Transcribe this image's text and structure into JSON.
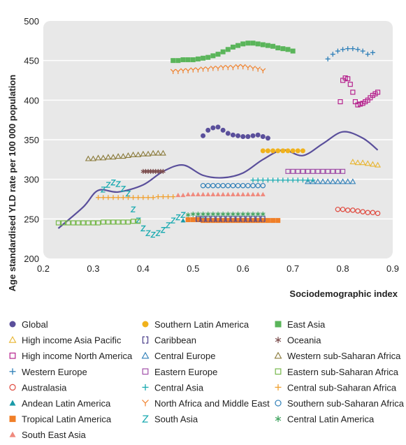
{
  "chart_data": {
    "type": "scatter",
    "xlabel": "Sociodemographic index",
    "ylabel": "Age standardised YLD rate per 100 000 population",
    "xlim": [
      0.2,
      0.9
    ],
    "ylim": [
      200,
      500
    ],
    "xticks": [
      "0.2",
      "0.3",
      "0.4",
      "0.5",
      "0.6",
      "0.7",
      "0.8",
      "0.9"
    ],
    "yticks": [
      "200",
      "250",
      "300",
      "350",
      "400",
      "450",
      "500"
    ],
    "grid": "horizontal",
    "legend_position": "bottom",
    "series": [
      {
        "name": "Global",
        "marker": "circle-filled",
        "color": "#5a4f9b",
        "x": [
          0.52,
          0.53,
          0.54,
          0.55,
          0.56,
          0.57,
          0.58,
          0.59,
          0.6,
          0.61,
          0.62,
          0.63,
          0.64,
          0.65
        ],
        "y": [
          355,
          362,
          365,
          366,
          362,
          358,
          356,
          355,
          354,
          354,
          355,
          356,
          354,
          352
        ]
      },
      {
        "name": "High income Asia Pacific",
        "marker": "triangle-open",
        "color": "#e8b530",
        "x": [
          0.82,
          0.83,
          0.84,
          0.85,
          0.86,
          0.87
        ],
        "y": [
          322,
          321,
          321,
          320,
          319,
          318
        ]
      },
      {
        "name": "High income North America",
        "marker": "square-open",
        "color": "#b6238e",
        "x": [
          0.795,
          0.8,
          0.805,
          0.81,
          0.815,
          0.82,
          0.825,
          0.83,
          0.835,
          0.84,
          0.845,
          0.85,
          0.855,
          0.86,
          0.865,
          0.87
        ],
        "y": [
          398,
          425,
          428,
          427,
          420,
          410,
          398,
          394,
          395,
          396,
          398,
          400,
          403,
          406,
          408,
          410
        ]
      },
      {
        "name": "Western Europe",
        "marker": "plus",
        "color": "#2e7fb8",
        "x": [
          0.77,
          0.78,
          0.79,
          0.8,
          0.81,
          0.82,
          0.83,
          0.84,
          0.85,
          0.86
        ],
        "y": [
          452,
          458,
          462,
          464,
          465,
          465,
          464,
          462,
          458,
          460
        ]
      },
      {
        "name": "Australasia",
        "marker": "circle-open",
        "color": "#e04a3f",
        "x": [
          0.79,
          0.8,
          0.81,
          0.82,
          0.83,
          0.84,
          0.85,
          0.86,
          0.87
        ],
        "y": [
          262,
          262,
          261,
          261,
          260,
          259,
          258,
          258,
          257
        ]
      },
      {
        "name": "Andean Latin America",
        "marker": "triangle-filled",
        "color": "#1a9aa8",
        "x": [
          0.48,
          0.49,
          0.5,
          0.51,
          0.52,
          0.53
        ],
        "y": [
          248,
          249,
          250,
          250,
          250,
          249
        ]
      },
      {
        "name": "Tropical Latin America",
        "marker": "square-filled",
        "color": "#f07f28",
        "x": [
          0.49,
          0.5,
          0.51,
          0.52,
          0.53,
          0.54,
          0.55,
          0.56,
          0.57,
          0.58,
          0.59,
          0.6,
          0.61,
          0.62,
          0.63,
          0.64,
          0.65,
          0.66,
          0.67
        ],
        "y": [
          249,
          249,
          249,
          248,
          248,
          248,
          248,
          248,
          248,
          248,
          248,
          248,
          248,
          248,
          248,
          248,
          248,
          248,
          248
        ]
      },
      {
        "name": "Central Latin America",
        "marker": "asterisk",
        "color": "#3aa15a",
        "x": [
          0.49,
          0.5,
          0.51,
          0.52,
          0.53,
          0.54,
          0.55,
          0.56,
          0.57,
          0.58,
          0.59,
          0.6,
          0.61,
          0.62,
          0.63,
          0.64
        ],
        "y": [
          255,
          256,
          256,
          256,
          256,
          256,
          256,
          256,
          256,
          256,
          256,
          256,
          256,
          256,
          256,
          256
        ]
      },
      {
        "name": "Southern Latin America",
        "marker": "circle-filled",
        "color": "#f0b21c",
        "x": [
          0.64,
          0.65,
          0.66,
          0.67,
          0.68,
          0.69,
          0.7,
          0.71,
          0.72
        ],
        "y": [
          336,
          336,
          336,
          336,
          336,
          336,
          336,
          336,
          336
        ]
      },
      {
        "name": "Caribbean",
        "marker": "bracket",
        "color": "#4b3f8a",
        "x": [
          0.51,
          0.52,
          0.53,
          0.54,
          0.55,
          0.56,
          0.57,
          0.58,
          0.59,
          0.6,
          0.61,
          0.62,
          0.63,
          0.64
        ],
        "y": [
          250,
          250,
          250,
          250,
          250,
          250,
          250,
          250,
          250,
          250,
          250,
          250,
          250,
          250
        ]
      },
      {
        "name": "Central Europe",
        "marker": "triangle-open",
        "color": "#2e7fb8",
        "x": [
          0.73,
          0.74,
          0.75,
          0.76,
          0.77,
          0.78,
          0.79,
          0.8,
          0.81,
          0.82
        ],
        "y": [
          297,
          297,
          297,
          297,
          297,
          297,
          297,
          297,
          297,
          297
        ]
      },
      {
        "name": "Eastern Europe",
        "marker": "square-open",
        "color": "#a14fa8",
        "x": [
          0.69,
          0.7,
          0.71,
          0.72,
          0.73,
          0.74,
          0.75,
          0.76,
          0.77,
          0.78,
          0.79,
          0.8
        ],
        "y": [
          310,
          310,
          310,
          310,
          310,
          310,
          310,
          310,
          310,
          310,
          310,
          310
        ]
      },
      {
        "name": "Central Asia",
        "marker": "plus",
        "color": "#1aaab0",
        "x": [
          0.62,
          0.63,
          0.64,
          0.65,
          0.66,
          0.67,
          0.68,
          0.69,
          0.7,
          0.71,
          0.72,
          0.73,
          0.74
        ],
        "y": [
          299,
          299,
          299,
          299,
          299,
          299,
          299,
          299,
          299,
          299,
          299,
          299,
          299
        ]
      },
      {
        "name": "North Africa and Middle East",
        "marker": "y-mark",
        "color": "#f07f28",
        "x": [
          0.46,
          0.47,
          0.48,
          0.49,
          0.5,
          0.51,
          0.52,
          0.53,
          0.54,
          0.55,
          0.56,
          0.57,
          0.58,
          0.59,
          0.6,
          0.61,
          0.62,
          0.63,
          0.64
        ],
        "y": [
          436,
          436,
          437,
          437,
          438,
          438,
          439,
          439,
          440,
          440,
          441,
          441,
          441,
          442,
          442,
          441,
          440,
          439,
          437
        ]
      },
      {
        "name": "South Asia",
        "marker": "z-mark",
        "color": "#1aaab0",
        "x": [
          0.32,
          0.33,
          0.34,
          0.35,
          0.36,
          0.37,
          0.38,
          0.39,
          0.4,
          0.41,
          0.42,
          0.43,
          0.44,
          0.45,
          0.46,
          0.47,
          0.48
        ],
        "y": [
          287,
          293,
          296,
          294,
          288,
          282,
          262,
          248,
          238,
          232,
          230,
          232,
          236,
          242,
          248,
          252,
          255
        ]
      },
      {
        "name": "South East Asia",
        "marker": "triangle-filled",
        "color": "#f08a7e",
        "x": [
          0.47,
          0.48,
          0.49,
          0.5,
          0.51,
          0.52,
          0.53,
          0.54,
          0.55,
          0.56,
          0.57,
          0.58,
          0.59,
          0.6,
          0.61,
          0.62,
          0.63,
          0.64
        ],
        "y": [
          280,
          280,
          281,
          281,
          281,
          281,
          281,
          281,
          281,
          281,
          281,
          281,
          281,
          281,
          281,
          281,
          281,
          281
        ]
      },
      {
        "name": "East Asia",
        "marker": "square-filled",
        "color": "#5ab55a",
        "x": [
          0.46,
          0.47,
          0.48,
          0.49,
          0.5,
          0.51,
          0.52,
          0.53,
          0.54,
          0.55,
          0.56,
          0.57,
          0.58,
          0.59,
          0.6,
          0.61,
          0.62,
          0.63,
          0.64,
          0.65,
          0.66,
          0.67,
          0.68,
          0.69,
          0.7
        ],
        "y": [
          450,
          450,
          451,
          451,
          451,
          452,
          453,
          454,
          456,
          458,
          461,
          464,
          467,
          469,
          471,
          472,
          472,
          471,
          470,
          469,
          468,
          466,
          465,
          464,
          462
        ]
      },
      {
        "name": "Oceania",
        "marker": "asterisk",
        "color": "#7a4b4b",
        "x": [
          0.4,
          0.405,
          0.41,
          0.415,
          0.42,
          0.425,
          0.43,
          0.435,
          0.44
        ],
        "y": [
          310,
          310,
          310,
          310,
          310,
          310,
          310,
          310,
          310
        ]
      },
      {
        "name": "Western sub-Saharan Africa",
        "marker": "triangle-open",
        "color": "#8a7a3a",
        "x": [
          0.29,
          0.3,
          0.31,
          0.32,
          0.33,
          0.34,
          0.35,
          0.36,
          0.37,
          0.38,
          0.39,
          0.4,
          0.41,
          0.42,
          0.43,
          0.44
        ],
        "y": [
          326,
          326,
          327,
          327,
          328,
          328,
          329,
          329,
          330,
          331,
          331,
          332,
          332,
          333,
          333,
          333
        ]
      },
      {
        "name": "Eastern sub-Saharan Africa",
        "marker": "square-open",
        "color": "#76b84a",
        "x": [
          0.23,
          0.24,
          0.25,
          0.26,
          0.27,
          0.28,
          0.29,
          0.3,
          0.31,
          0.32,
          0.33,
          0.34,
          0.35,
          0.36,
          0.37,
          0.38,
          0.39
        ],
        "y": [
          245,
          245,
          245,
          245,
          245,
          245,
          245,
          245,
          245,
          246,
          246,
          246,
          246,
          246,
          246,
          247,
          247
        ]
      },
      {
        "name": "Central sub-Saharan Africa",
        "marker": "plus",
        "color": "#f0a030",
        "x": [
          0.31,
          0.32,
          0.33,
          0.34,
          0.35,
          0.36,
          0.37,
          0.38,
          0.39,
          0.4,
          0.41,
          0.42,
          0.43,
          0.44,
          0.45,
          0.46
        ],
        "y": [
          277,
          277,
          277,
          277,
          277,
          277,
          277,
          277,
          277,
          277,
          277,
          277,
          278,
          278,
          278,
          278
        ]
      },
      {
        "name": "Southern sub-Saharan Africa",
        "marker": "circle-open",
        "color": "#2e7fb8",
        "x": [
          0.52,
          0.53,
          0.54,
          0.55,
          0.56,
          0.57,
          0.58,
          0.59,
          0.6,
          0.61,
          0.62,
          0.63,
          0.64
        ],
        "y": [
          292,
          292,
          292,
          292,
          292,
          292,
          292,
          292,
          292,
          292,
          292,
          292,
          292
        ]
      }
    ],
    "trend": {
      "color": "#5a4f9b",
      "x": [
        0.23,
        0.28,
        0.31,
        0.35,
        0.4,
        0.44,
        0.48,
        0.52,
        0.56,
        0.6,
        0.64,
        0.68,
        0.72,
        0.76,
        0.8,
        0.84,
        0.87
      ],
      "y": [
        238,
        265,
        286,
        284,
        293,
        310,
        318,
        305,
        302,
        308,
        325,
        337,
        330,
        345,
        360,
        352,
        337
      ]
    },
    "legend_order": [
      "Global",
      "Southern Latin America",
      "East Asia",
      "High income Asia Pacific",
      "Caribbean",
      "Oceania",
      "High income North America",
      "Central Europe",
      "Western sub-Saharan Africa",
      "Western Europe",
      "Eastern Europe",
      "Eastern sub-Saharan Africa",
      "Australasia",
      "Central Asia",
      "Central sub-Saharan Africa",
      "Andean Latin America",
      "North Africa and Middle East",
      "Southern sub-Saharan Africa",
      "Tropical Latin America",
      "South Asia",
      "Central Latin America",
      "South East Asia"
    ]
  }
}
